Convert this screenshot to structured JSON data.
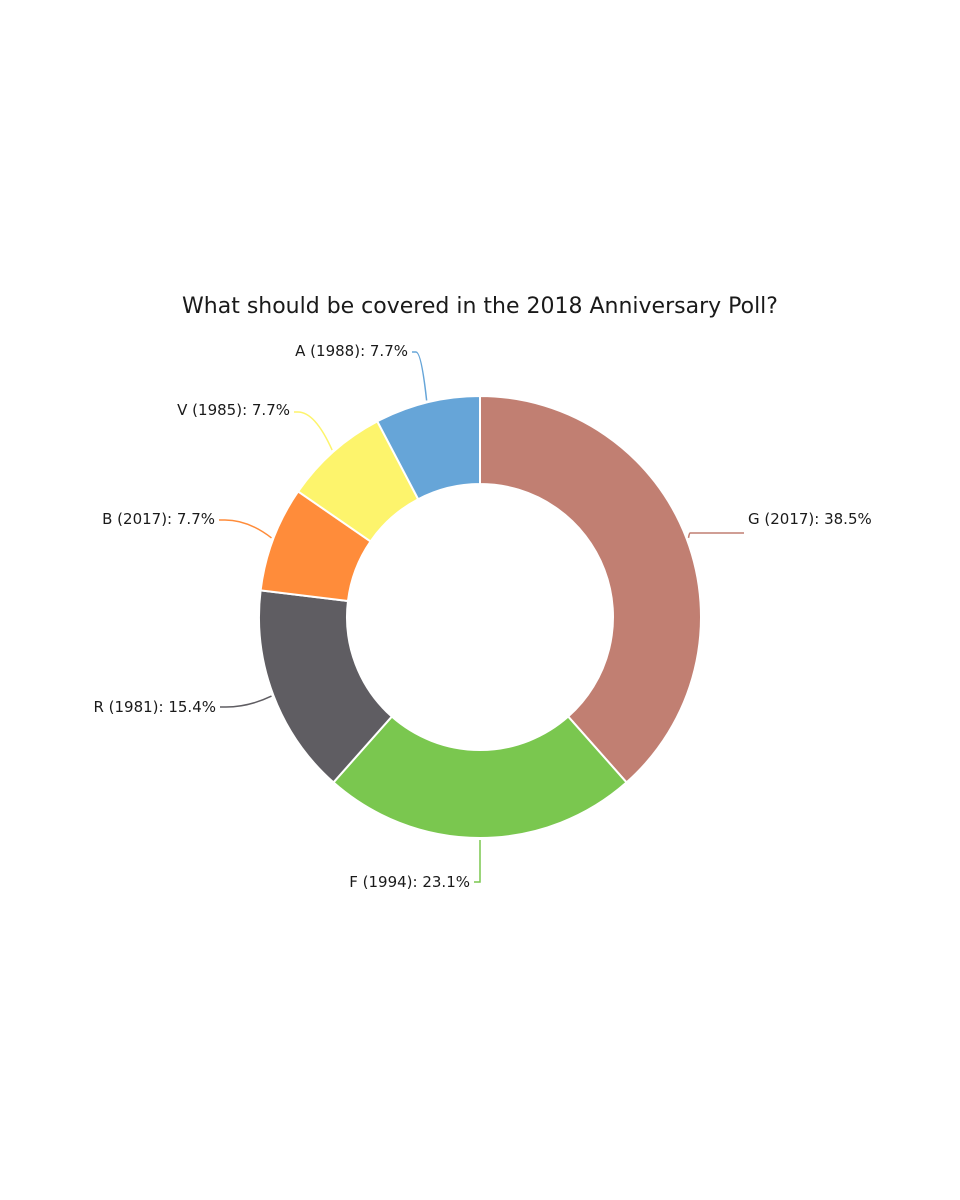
{
  "chart_data": {
    "type": "pie",
    "variant": "donut",
    "title": "What should be covered in the 2018 Anniversary Poll?",
    "start_angle_deg": 0,
    "direction": "clockwise",
    "slices": [
      {
        "name": "G (2017)",
        "value": 38.5,
        "label": "G (2017): 38.5%",
        "color": "#c17f72"
      },
      {
        "name": "F (1994)",
        "value": 23.1,
        "label": "F (1994): 23.1%",
        "color": "#7ac74f"
      },
      {
        "name": "R (1981)",
        "value": 15.4,
        "label": "R (1981): 15.4%",
        "color": "#5f5d62"
      },
      {
        "name": "B (2017)",
        "value": 7.7,
        "label": "B (2017): 7.7%",
        "color": "#ff8c3a"
      },
      {
        "name": "V (1985)",
        "value": 7.7,
        "label": "V (1985): 7.7%",
        "color": "#fdf46c"
      },
      {
        "name": "A (1988)",
        "value": 7.7,
        "label": "A (1988): 7.7%",
        "color": "#66a5d8"
      }
    ],
    "legend": "none",
    "grid": false
  }
}
